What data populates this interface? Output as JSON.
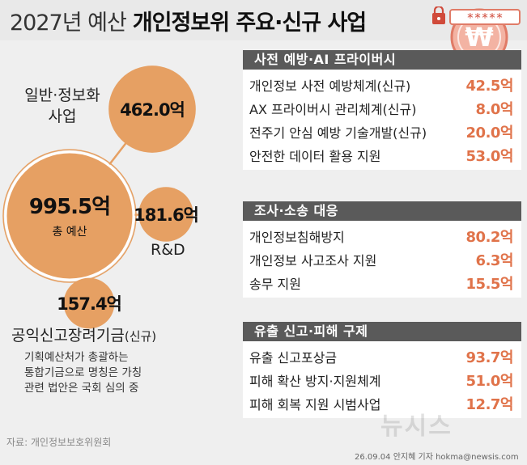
{
  "header": {
    "title_light": "2027년 예산",
    "title_bold": "개인정보위 주요·신규 사업",
    "logo_stars": "*****"
  },
  "colors": {
    "bubble": "#e6a063",
    "bubble_stroke": "#d4863d",
    "value_text": "#e0734a",
    "section_header": "#5a5a5a"
  },
  "chart_data": [
    {
      "type": "bubble",
      "unit": "억",
      "items": [
        {
          "name": "총 예산",
          "value": 995.5,
          "value_label": "995.5억"
        },
        {
          "name": "일반·정보화 사업",
          "value": 462.0,
          "value_label": "462.0억"
        },
        {
          "name": "R&D",
          "value": 181.6,
          "value_label": "181.6억"
        },
        {
          "name": "공익신고장려기금",
          "value": 157.4,
          "value_label": "157.4억"
        }
      ]
    },
    {
      "type": "table",
      "unit": "억",
      "sections": [
        {
          "title": "사전 예방·AI 프라이버시",
          "rows": [
            {
              "label": "개인정보 사전 예방체계(신규)",
              "value": 42.5,
              "value_label": "42.5억"
            },
            {
              "label": "AX 프라이버시 관리체계(신규)",
              "value": 8.0,
              "value_label": "8.0억"
            },
            {
              "label": "전주기 안심 예방 기술개발(신규)",
              "value": 20.0,
              "value_label": "20.0억"
            },
            {
              "label": "안전한 데이터 활용 지원",
              "value": 53.0,
              "value_label": "53.0억"
            }
          ]
        },
        {
          "title": "조사·소송 대응",
          "rows": [
            {
              "label": "개인정보침해방지",
              "value": 80.2,
              "value_label": "80.2억"
            },
            {
              "label": "개인정보 사고조사 지원",
              "value": 6.3,
              "value_label": "6.3억"
            },
            {
              "label": "송무 지원",
              "value": 15.5,
              "value_label": "15.5억"
            }
          ]
        },
        {
          "title": "유출 신고·피해 구제",
          "rows": [
            {
              "label": "유출 신고포상금",
              "value": 93.7,
              "value_label": "93.7억"
            },
            {
              "label": "피해 확산 방지·지원체계",
              "value": 51.0,
              "value_label": "51.0억"
            },
            {
              "label": "피해 회복 지원 시범사업",
              "value": 12.7,
              "value_label": "12.7억"
            }
          ]
        }
      ]
    }
  ],
  "labels": {
    "general_line1": "일반·정보화",
    "general_line2": "사업",
    "rnd": "R&D",
    "fund": "공익신고장려기금",
    "fund_suffix": "(신규)",
    "fund_note_1": "기획예산처가 총괄하는",
    "fund_note_2": "통합기금으로 명칭은 가칭",
    "fund_note_3": "관련 법안은 국회 심의 중"
  },
  "footer": {
    "source": "자료: 개인정보보호위원회",
    "credit": "26.09.04 안지혜 기자 hokma@newsis.com",
    "watermark": "뉴시스"
  }
}
